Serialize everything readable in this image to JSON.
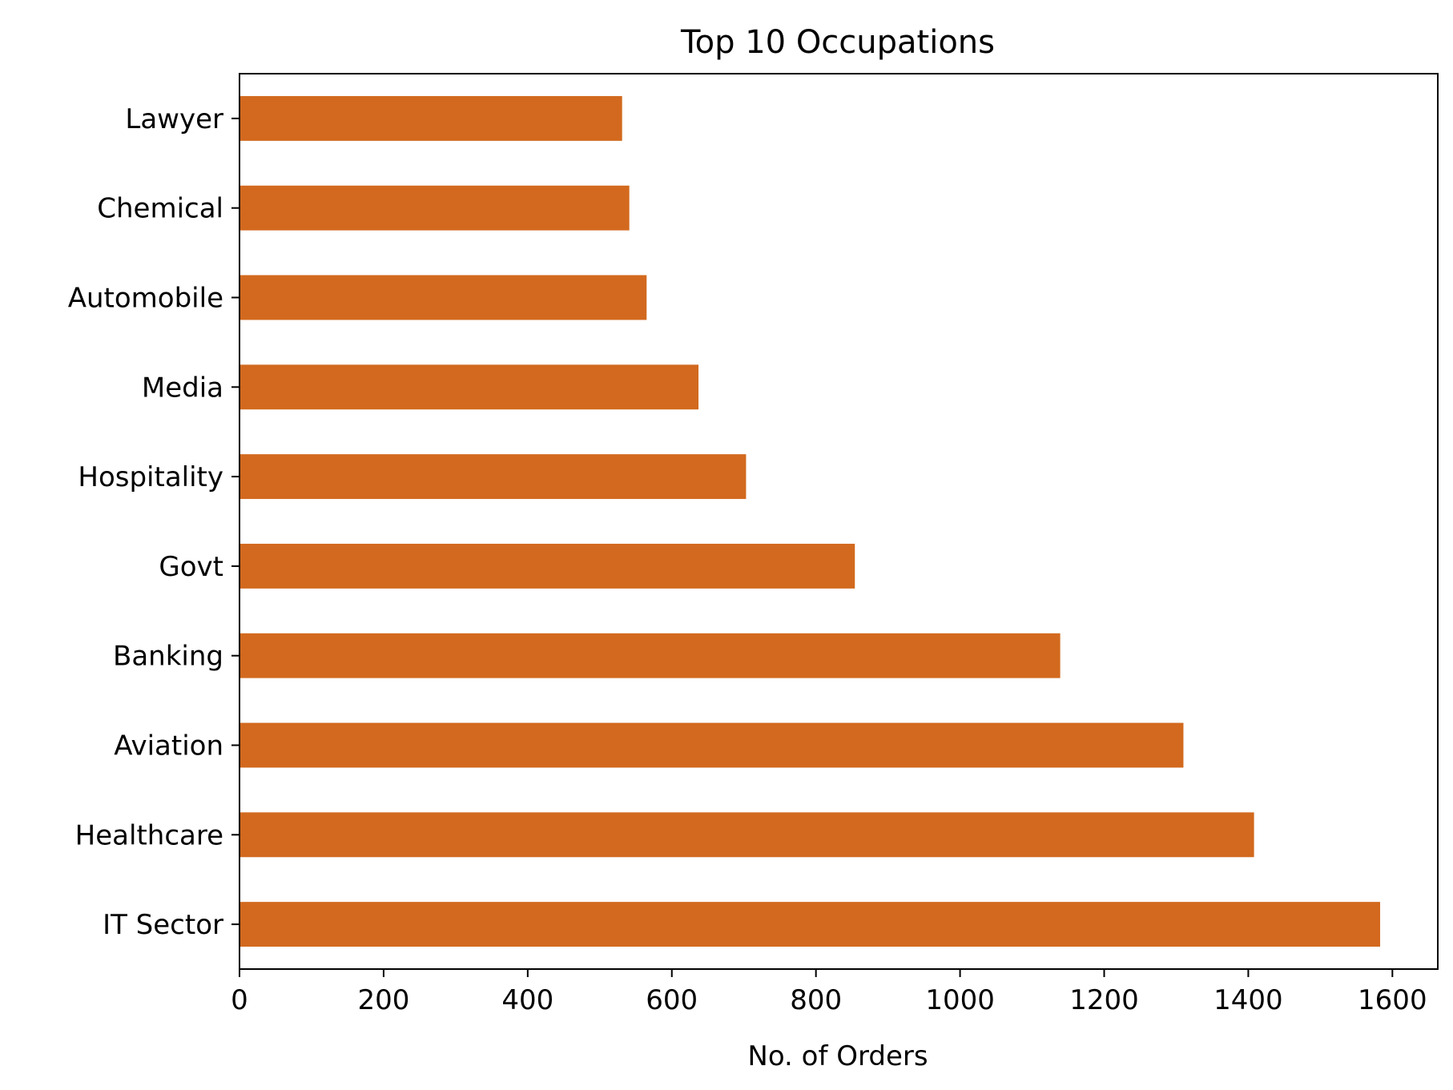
{
  "chart_data": {
    "type": "bar",
    "orientation": "horizontal",
    "title": "Top 10 Occupations",
    "xlabel": "No. of Orders",
    "ylabel": "",
    "categories": [
      "IT Sector",
      "Healthcare",
      "Aviation",
      "Banking",
      "Govt",
      "Hospitality",
      "Media",
      "Automobile",
      "Chemical",
      "Lawyer"
    ],
    "values": [
      1583,
      1408,
      1310,
      1139,
      854,
      703,
      637,
      565,
      541,
      531
    ],
    "xlim": [
      0,
      1663
    ],
    "xticks": [
      0,
      200,
      400,
      600,
      800,
      1000,
      1200,
      1400,
      1600
    ],
    "bar_color": "#d2691e",
    "grid": false,
    "legend": "none"
  }
}
